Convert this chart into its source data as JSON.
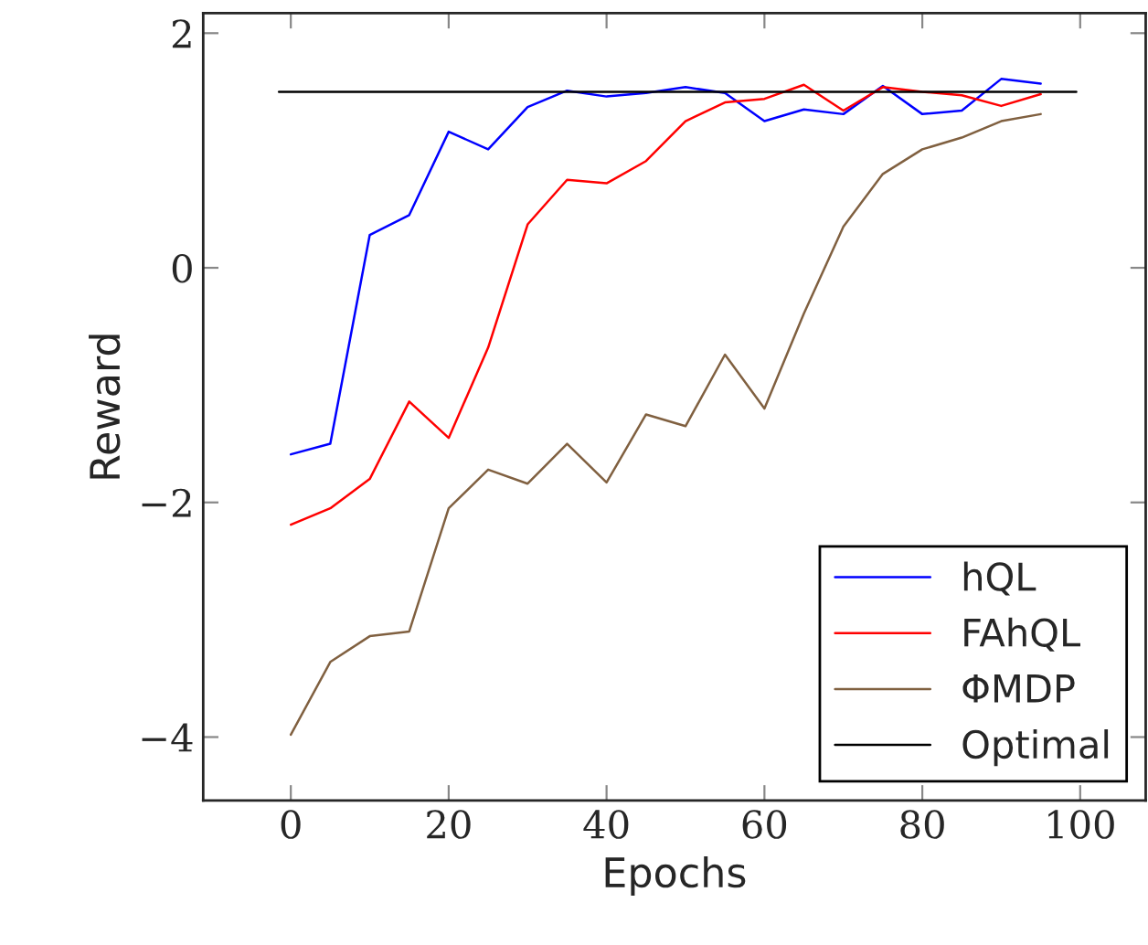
{
  "chart_data": {
    "type": "line",
    "xlabel": "Epochs",
    "ylabel": "Reward",
    "xlim": [
      -11.1,
      108.3
    ],
    "ylim": [
      -4.54,
      2.17
    ],
    "xticks": [
      0,
      20,
      40,
      60,
      80,
      100
    ],
    "yticks": [
      {
        "value": -4,
        "label": "−4"
      },
      {
        "value": -2,
        "label": "−2"
      },
      0,
      2
    ],
    "x": [
      0,
      5,
      10,
      15,
      20,
      25,
      30,
      35,
      40,
      45,
      50,
      55,
      60,
      65,
      70,
      75,
      80,
      85,
      90,
      95
    ],
    "series": [
      {
        "name": "hQL",
        "color": "#0000ff",
        "values": [
          -1.59,
          -1.5,
          0.28,
          0.45,
          1.16,
          1.01,
          1.37,
          1.51,
          1.46,
          1.49,
          1.54,
          1.49,
          1.25,
          1.35,
          1.31,
          1.55,
          1.31,
          1.34,
          1.61,
          1.57
        ]
      },
      {
        "name": "FAhQL",
        "color": "#ff0000",
        "values": [
          -2.19,
          -2.05,
          -1.8,
          -1.14,
          -1.45,
          -0.68,
          0.37,
          0.75,
          0.72,
          0.91,
          1.25,
          1.41,
          1.44,
          1.56,
          1.34,
          1.54,
          1.5,
          1.47,
          1.38,
          1.48
        ]
      },
      {
        "name": "ΦMDP",
        "color": "#806040",
        "values": [
          -3.98,
          -3.36,
          -3.14,
          -3.1,
          -2.05,
          -1.72,
          -1.84,
          -1.5,
          -1.83,
          -1.25,
          -1.35,
          -0.74,
          -1.2,
          -0.39,
          0.35,
          0.8,
          1.01,
          1.11,
          1.25,
          1.31
        ]
      },
      {
        "name": "Optimal",
        "color": "#000000",
        "x": [
          -1.5,
          99.5
        ],
        "values": [
          1.5,
          1.5
        ]
      }
    ],
    "legend": "bottom right",
    "grid": false,
    "marker": "none",
    "line_style": "solid"
  }
}
